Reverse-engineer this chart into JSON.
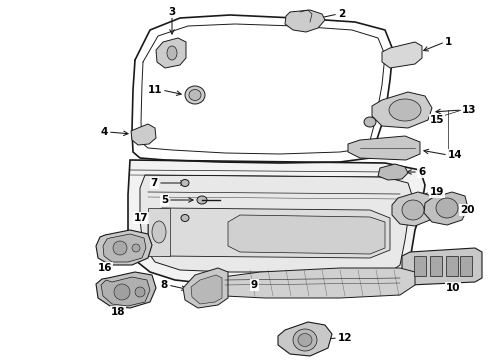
{
  "background_color": "#ffffff",
  "fig_width": 4.9,
  "fig_height": 3.6,
  "dpi": 100,
  "line_color": "#1a1a1a",
  "label_color": "#000000",
  "part_fill": "#d8d8d8",
  "part_edge": "#1a1a1a"
}
